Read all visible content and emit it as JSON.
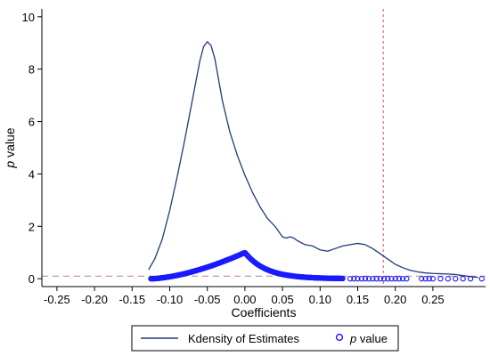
{
  "chart_data": {
    "type": "line",
    "xlabel": "Coefficients",
    "ylabel_prefix": "p",
    "ylabel_suffix": " value",
    "x_ticks": [
      -0.25,
      -0.2,
      -0.15,
      -0.1,
      -0.05,
      0.0,
      0.05,
      0.1,
      0.15,
      0.2,
      0.25
    ],
    "x_tick_labels": [
      "-0.25",
      "-0.20",
      "-0.15",
      "-0.10",
      "-0.05",
      "0.00",
      "0.05",
      "0.10",
      "0.15",
      "0.20",
      "0.25"
    ],
    "y_ticks": [
      0,
      2,
      4,
      6,
      8,
      10
    ],
    "y_tick_labels": [
      "0",
      "2",
      "4",
      "6",
      "8",
      "10"
    ],
    "xlim": [
      -0.27,
      0.32
    ],
    "ylim": [
      -0.3,
      10.3
    ],
    "reference_lines": {
      "vertical_x": 0.184,
      "horizontal_y": 0.1
    },
    "series": [
      {
        "name": "Kdensity of Estimates",
        "kind": "line",
        "color": "#1f3a7a",
        "x": [
          -0.128,
          -0.12,
          -0.11,
          -0.1,
          -0.09,
          -0.08,
          -0.07,
          -0.06,
          -0.055,
          -0.05,
          -0.045,
          -0.04,
          -0.035,
          -0.03,
          -0.02,
          -0.01,
          0.0,
          0.01,
          0.02,
          0.03,
          0.04,
          0.05,
          0.055,
          0.06,
          0.065,
          0.07,
          0.08,
          0.09,
          0.1,
          0.11,
          0.12,
          0.13,
          0.14,
          0.15,
          0.16,
          0.17,
          0.18,
          0.19,
          0.2,
          0.21,
          0.22,
          0.23,
          0.24,
          0.25,
          0.26,
          0.27,
          0.28,
          0.29,
          0.3,
          0.31
        ],
        "y": [
          0.35,
          0.75,
          1.5,
          2.6,
          3.9,
          5.3,
          6.8,
          8.3,
          8.85,
          9.05,
          8.9,
          8.4,
          7.6,
          6.8,
          5.6,
          4.7,
          3.95,
          3.3,
          2.75,
          2.3,
          2.0,
          1.6,
          1.55,
          1.6,
          1.55,
          1.45,
          1.3,
          1.25,
          1.1,
          1.05,
          1.15,
          1.25,
          1.3,
          1.35,
          1.3,
          1.15,
          0.95,
          0.75,
          0.55,
          0.42,
          0.32,
          0.26,
          0.22,
          0.2,
          0.19,
          0.18,
          0.16,
          0.12,
          0.08,
          0.05
        ]
      },
      {
        "name": "p value",
        "kind": "scatter",
        "color": "#1a1aff",
        "peak": {
          "x": 0.0,
          "y": 1.0
        },
        "dense_range": [
          -0.125,
          0.13
        ],
        "sparse_x": [
          0.14,
          0.145,
          0.15,
          0.155,
          0.16,
          0.165,
          0.17,
          0.175,
          0.18,
          0.185,
          0.19,
          0.195,
          0.2,
          0.205,
          0.21,
          0.215,
          0.235,
          0.24,
          0.245,
          0.25,
          0.26,
          0.27,
          0.28,
          0.29,
          0.3,
          0.315
        ]
      }
    ],
    "legend": {
      "position": "bottom",
      "entries": [
        {
          "label": "Kdensity of Estimates",
          "symbol": "line"
        },
        {
          "label_prefix": "p",
          "label_suffix": " value",
          "symbol": "hollow-circle"
        }
      ]
    },
    "colors": {
      "line": "#1f3a7a",
      "markers": "#1a1aff",
      "vline": "#d9534f",
      "hline": "#c08080",
      "axis": "#000000",
      "legend_border": "#000000"
    }
  }
}
